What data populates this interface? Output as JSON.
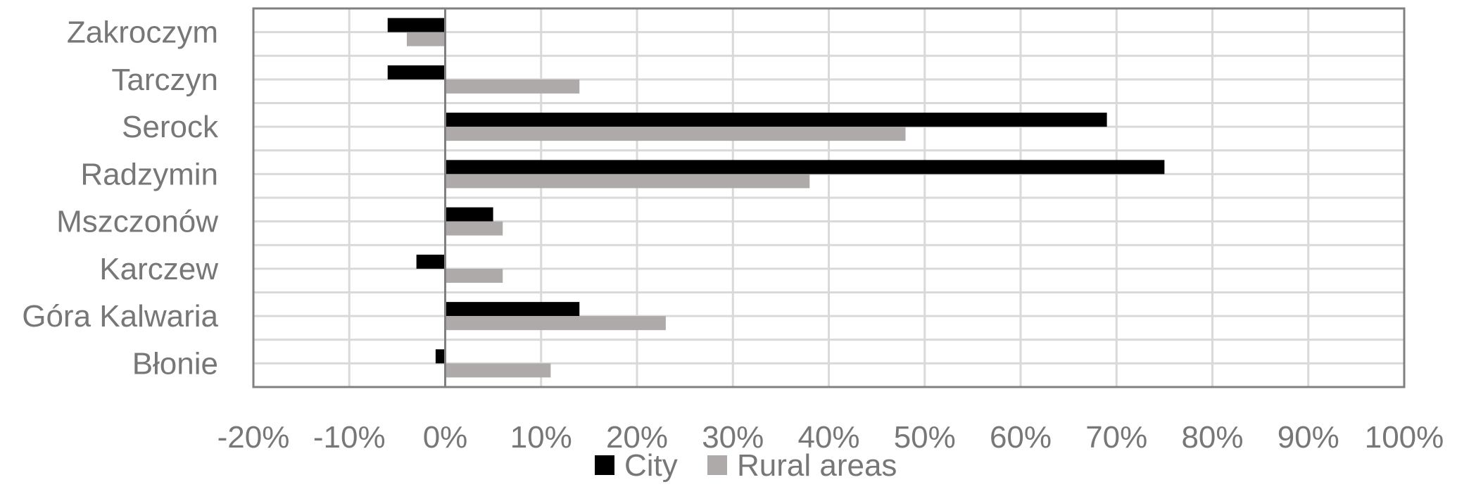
{
  "chart_data": {
    "type": "bar",
    "orientation": "horizontal",
    "categories": [
      "Zakroczym",
      "Tarczyn",
      "Serock",
      "Radzymin",
      "Mszczonów",
      "Karczew",
      "Góra Kalwaria",
      "Błonie"
    ],
    "series": [
      {
        "name": "City",
        "color": "#000000",
        "values": [
          -6,
          -6,
          69,
          75,
          5,
          -3,
          14,
          -1
        ]
      },
      {
        "name": "Rural areas",
        "color": "#aeaaaa",
        "values": [
          -4,
          14,
          48,
          38,
          6,
          6,
          23,
          11
        ]
      }
    ],
    "xlim": [
      -20,
      100
    ],
    "xticks": [
      "-20%",
      "-10%",
      "0%",
      "10%",
      "20%",
      "30%",
      "40%",
      "50%",
      "60%",
      "70%",
      "80%",
      "90%",
      "100%"
    ],
    "grid": true,
    "legend_position": "bottom"
  }
}
